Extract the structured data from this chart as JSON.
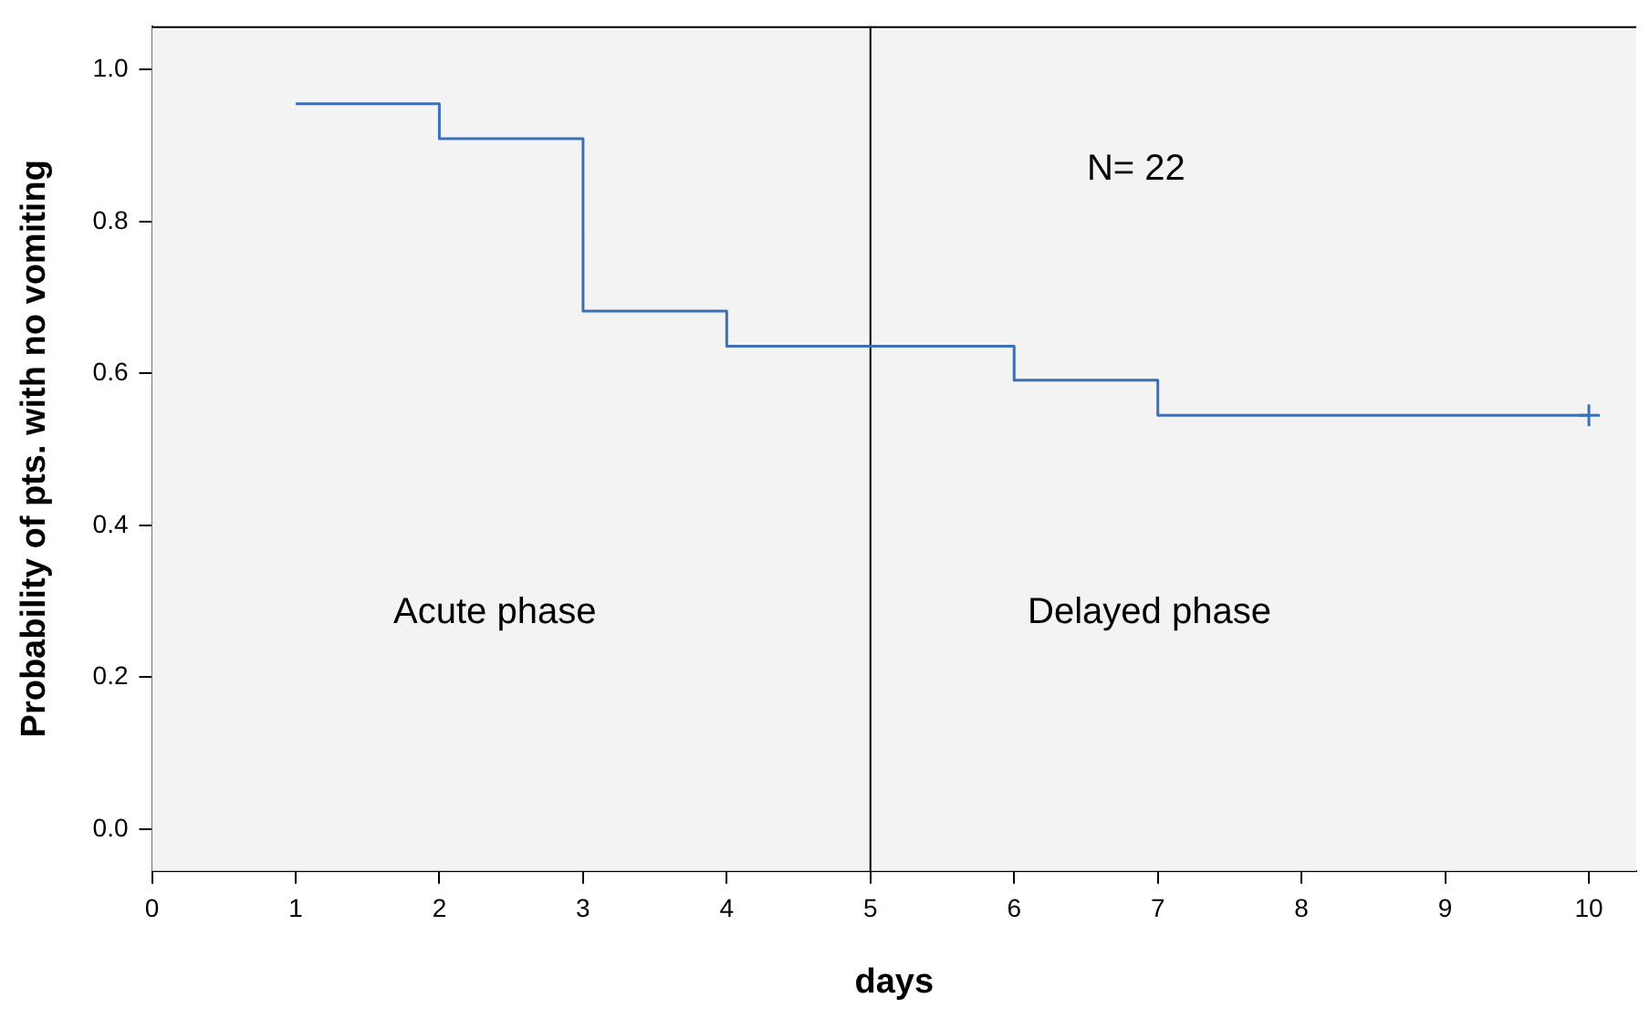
{
  "chart_data": {
    "type": "step",
    "xlabel": "days",
    "ylabel": "Probability of pts. with no vomiting",
    "xlim": [
      0,
      10.33
    ],
    "xticks": [
      0,
      1,
      2,
      3,
      4,
      5,
      6,
      7,
      8,
      9,
      10
    ],
    "ylim": [
      -0.055,
      1.057
    ],
    "yticks": [
      {
        "value": 0,
        "label": "0.0"
      },
      {
        "value": 0.2,
        "label": "0.2"
      },
      {
        "value": 0.4,
        "label": "0.4"
      },
      {
        "value": 0.6,
        "label": "0.6"
      },
      {
        "value": 0.8,
        "label": "0.8"
      },
      {
        "value": 1,
        "label": "1.0"
      }
    ],
    "grid": false,
    "legend": false,
    "series": [
      {
        "color": "#3a70b8",
        "x": [
          1,
          2,
          3,
          4,
          6,
          7,
          10
        ],
        "values": [
          0.955,
          0.909,
          0.682,
          0.636,
          0.591,
          0.545,
          0.545
        ]
      },
      {
        "type": "scatter",
        "color": "#3a70b8",
        "marker": "cross",
        "x": [
          10
        ],
        "values": [
          0.545
        ]
      }
    ],
    "ref_lines": [
      {
        "axis": "x",
        "value": 5,
        "color": "#000000"
      }
    ],
    "annotations": [
      "N= 22",
      "Acute phase",
      "Delayed phase"
    ]
  }
}
